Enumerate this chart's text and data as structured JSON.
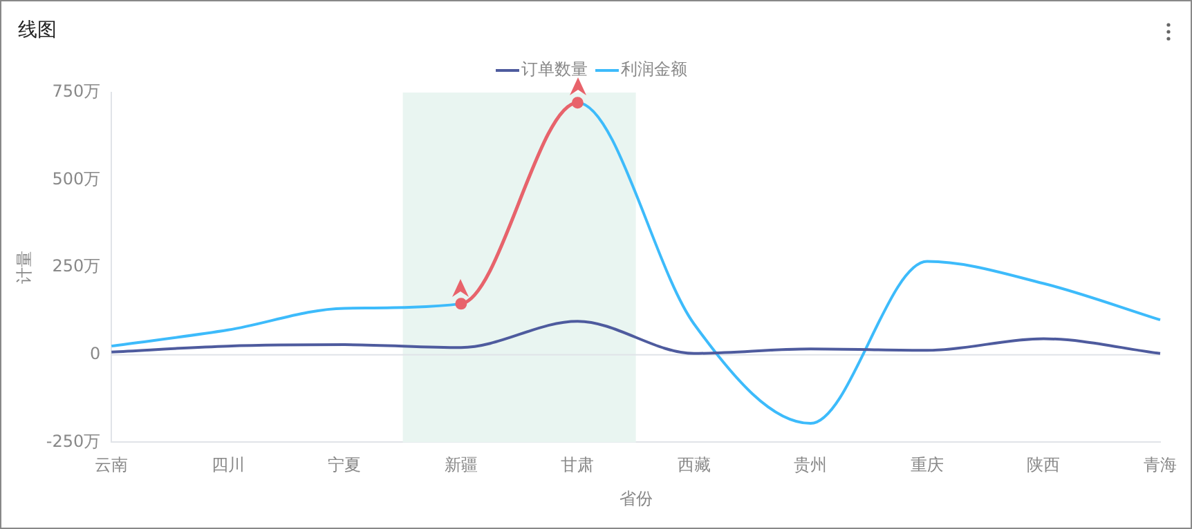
{
  "chart_data": {
    "type": "line",
    "title": "线图",
    "xlabel": "省份",
    "ylabel": "计量",
    "categories": [
      "云南",
      "四川",
      "宁夏",
      "新疆",
      "甘肃",
      "西藏",
      "贵州",
      "重庆",
      "陕西",
      "青海"
    ],
    "series": [
      {
        "name": "订单数量",
        "color": "#4e5b9e",
        "values": [
          8,
          25,
          29,
          21,
          96,
          4,
          17,
          13,
          46,
          4
        ]
      },
      {
        "name": "利润金额",
        "color": "#3dbbfb",
        "values": [
          25,
          71,
          133,
          146,
          721,
          88,
          -196,
          267,
          204,
          100
        ]
      },
      {
        "color": "#e8636b",
        "marker": "circle",
        "values": [
          null,
          null,
          null,
          146,
          721,
          null,
          null,
          null,
          null,
          null
        ]
      }
    ],
    "ylim": [
      -250,
      750
    ],
    "yticks": [
      {
        "value": -250,
        "label": "-250万"
      },
      0,
      {
        "value": 250,
        "label": "250万"
      },
      {
        "value": 500,
        "label": "500万"
      },
      {
        "value": 750,
        "label": "750万"
      }
    ],
    "bands": [
      {
        "axis": "x",
        "from": "新疆",
        "to": "甘肃",
        "color": "#e9f5f1"
      }
    ],
    "ref_lines": [
      {
        "axis": "y",
        "value": 0,
        "color": "#e0e3e8"
      }
    ],
    "grid": false,
    "legend": "top",
    "marker": "none",
    "line_style": "solid"
  }
}
